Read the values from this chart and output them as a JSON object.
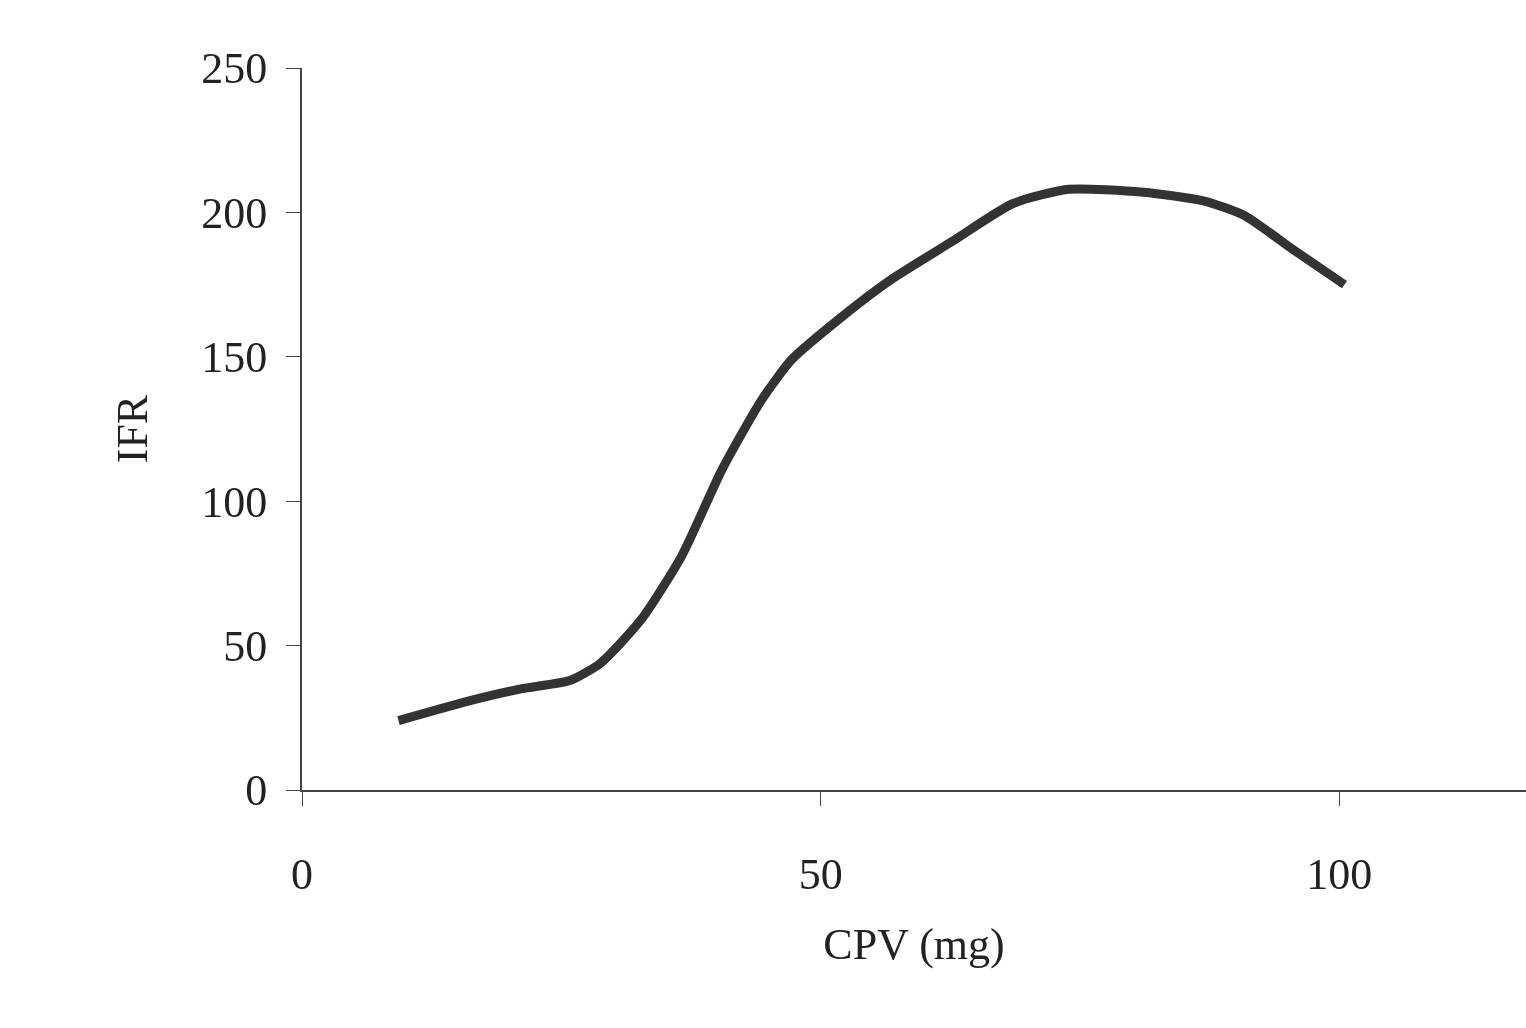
{
  "chart_data": {
    "type": "line",
    "xlabel": "CPV (mg)",
    "ylabel": "IFR",
    "x": [
      9.3,
      16.3,
      21.1,
      25.9,
      28.8,
      32.7,
      36.6,
      40.5,
      44.3,
      47.2,
      52.1,
      56.9,
      62.7,
      68.5,
      73.9,
      81.1,
      86.9,
      90.8,
      95.6,
      100.5
    ],
    "series": [
      {
        "color": "#333333",
        "values": [
          24,
          31,
          35,
          38,
          44,
          59,
          81,
          111,
          135,
          149,
          164,
          177,
          190,
          203,
          208,
          207,
          204,
          199,
          187,
          175
        ]
      }
    ],
    "xlim": [
      0,
      118
    ],
    "xticks": [
      0,
      50,
      100
    ],
    "ylim": [
      0,
      250
    ],
    "yticks": [
      0,
      50,
      100,
      150,
      200,
      250
    ],
    "grid": false,
    "marker": "none",
    "line_style": "solid"
  }
}
